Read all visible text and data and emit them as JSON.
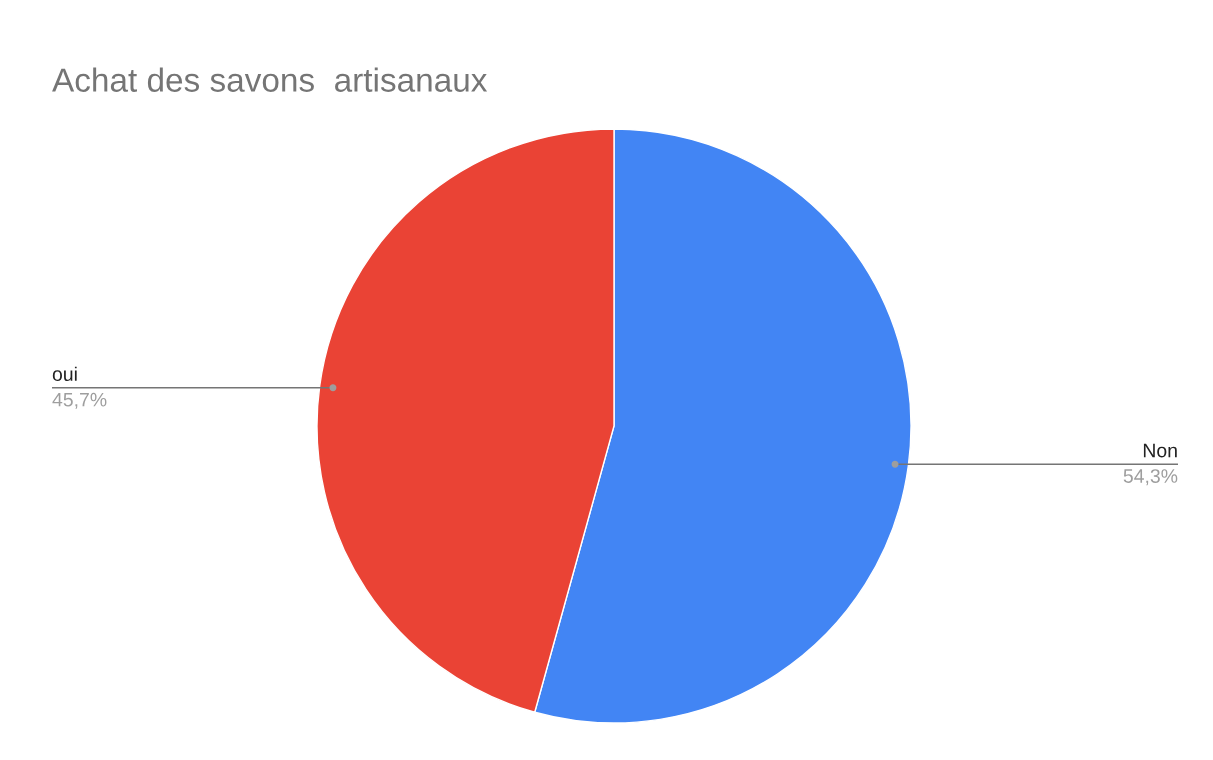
{
  "chart_data": {
    "type": "pie",
    "title": "Achat des savons  artisanaux",
    "categories": [
      "Non",
      "oui"
    ],
    "values": [
      54.3,
      45.7
    ],
    "colors": [
      "#4285f4",
      "#ea4335"
    ],
    "value_labels": [
      "54,3%",
      "45,7%"
    ],
    "legend": false
  }
}
